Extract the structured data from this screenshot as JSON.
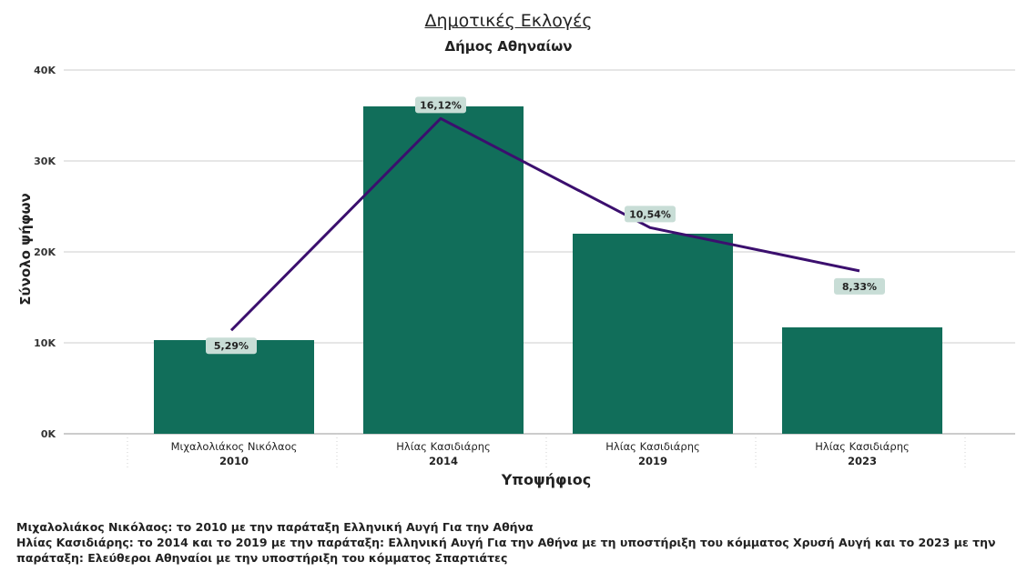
{
  "chart_data": {
    "type": "bar",
    "title": "Δημοτικές Εκλογές",
    "subtitle": "Δήμος Αθηναίων",
    "xlabel": "Υποψήφιος",
    "ylabel": "Σύνολο ψήφων",
    "ylim": [
      0,
      40000
    ],
    "yticks": [
      "0K",
      "10K",
      "20K",
      "30K",
      "40K"
    ],
    "grid": true,
    "categories": [
      {
        "name": "Μιχαλολιάκος Νικόλαος",
        "year": "2010"
      },
      {
        "name": "Ηλίας Κασιδιάρης",
        "year": "2014"
      },
      {
        "name": "Ηλίας Κασιδιάρης",
        "year": "2019"
      },
      {
        "name": "Ηλίας Κασιδιάρης",
        "year": "2023"
      }
    ],
    "values": [
      10300,
      36000,
      22000,
      11700
    ],
    "line_series": {
      "values": [
        5.29,
        16.12,
        10.54,
        8.33
      ],
      "labels": [
        "5,29%",
        "16,12%",
        "10,54%",
        "8,33%"
      ],
      "y_range_pct": [
        0,
        18.6
      ]
    },
    "colors": {
      "bar": "#116e5a",
      "line": "#3b0f6e",
      "label_bg": "#c8ddd6",
      "grid": "#cccccc"
    }
  },
  "footnotes": [
    "Μιχαλολιάκος Νικόλαος: το 2010 με την παράταξη Ελληνική Αυγή Για την Αθήνα",
    "Ηλίας Κασιδιάρης: το 2014 και το 2019 με την παράταξη: Ελληνική Αυγή Για την Αθήνα με τη υποστήριξη του κόμματος Χρυσή Αυγή και το 2023 με την παράταξη: Ελεύθεροι Αθηναίοι με την υποστήριξη του κόμματος Σπαρτιάτες"
  ]
}
